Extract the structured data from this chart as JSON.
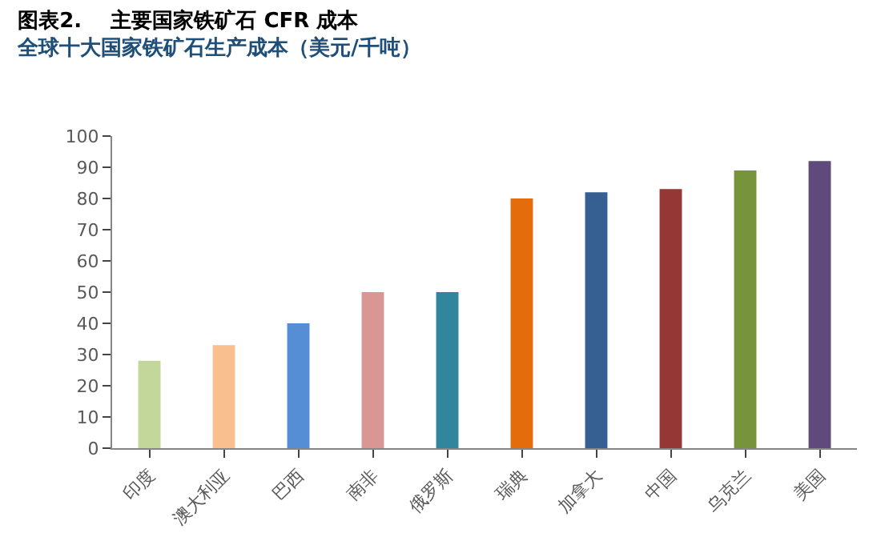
{
  "chart_data": {
    "type": "bar",
    "title": "图表2.    主要国家铁矿石 CFR 成本",
    "subtitle": "全球十大国家铁矿石生产成本（美元/千吨）",
    "categories": [
      "印度",
      "澳大利亚",
      "巴西",
      "南非",
      "俄罗斯",
      "瑞典",
      "加拿大",
      "中国",
      "乌克兰",
      "美国"
    ],
    "values": [
      28,
      33,
      40,
      50,
      50,
      80,
      82,
      83,
      89,
      92
    ],
    "colors": [
      "#c4d79b",
      "#fabf8f",
      "#558ed5",
      "#d99694",
      "#31859c",
      "#e46c0a",
      "#376092",
      "#953735",
      "#77933c",
      "#604a7b"
    ],
    "ylim": [
      0,
      100
    ],
    "yticks": [
      0,
      10,
      20,
      30,
      40,
      50,
      60,
      70,
      80,
      90,
      100
    ]
  }
}
